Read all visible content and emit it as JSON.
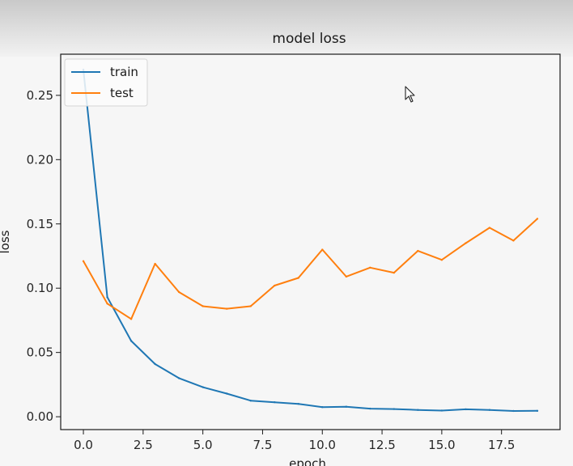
{
  "chart_data": {
    "type": "line",
    "title": "model loss",
    "xlabel": "epoch",
    "ylabel": "loss",
    "xlim": [
      -0.95,
      19.95
    ],
    "ylim": [
      -0.01,
      0.282
    ],
    "x_ticks": [
      0.0,
      2.5,
      5.0,
      7.5,
      10.0,
      12.5,
      15.0,
      17.5
    ],
    "x_tick_labels": [
      "0.0",
      "2.5",
      "5.0",
      "7.5",
      "10.0",
      "12.5",
      "15.0",
      "17.5"
    ],
    "y_ticks": [
      0.0,
      0.05,
      0.1,
      0.15,
      0.2,
      0.25
    ],
    "y_tick_labels": [
      "0.00",
      "0.05",
      "0.10",
      "0.15",
      "0.20",
      "0.25"
    ],
    "grid": false,
    "legend_position": "upper-left",
    "x": [
      0,
      1,
      2,
      3,
      4,
      5,
      6,
      7,
      8,
      9,
      10,
      11,
      12,
      13,
      14,
      15,
      16,
      17,
      18,
      19
    ],
    "series": [
      {
        "name": "train",
        "color": "#1f77b4",
        "values": [
          0.27,
          0.093,
          0.059,
          0.041,
          0.03,
          0.023,
          0.018,
          0.0125,
          0.0113,
          0.01,
          0.0075,
          0.0078,
          0.0063,
          0.006,
          0.0053,
          0.0048,
          0.0058,
          0.0053,
          0.0045,
          0.0046
        ]
      },
      {
        "name": "test",
        "color": "#ff7f0e",
        "values": [
          0.121,
          0.088,
          0.076,
          0.119,
          0.097,
          0.086,
          0.084,
          0.086,
          0.102,
          0.108,
          0.13,
          0.109,
          0.116,
          0.112,
          0.129,
          0.122,
          0.135,
          0.147,
          0.137,
          0.154
        ]
      }
    ]
  }
}
